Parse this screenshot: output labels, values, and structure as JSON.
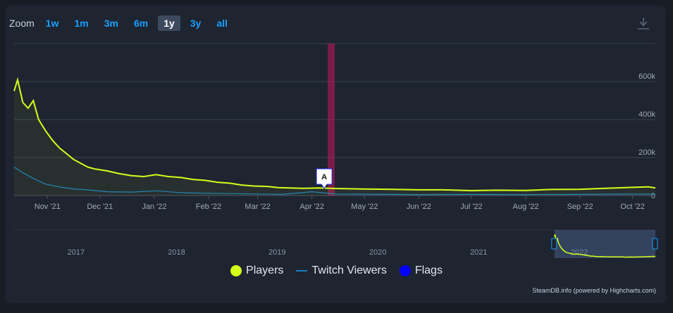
{
  "zoom": {
    "label": "Zoom",
    "buttons": [
      "1w",
      "1m",
      "3m",
      "6m",
      "1y",
      "3y",
      "all"
    ],
    "active": "1y"
  },
  "legend": {
    "players": "Players",
    "twitch": "Twitch Viewers",
    "flags": "Flags"
  },
  "credit": "SteamDB.info (powered by Highcharts.com)",
  "colors": {
    "players": "#d4ff1a",
    "twitch": "#1a7fc0",
    "flags": "#0000ff",
    "highlight": "#c2185b"
  },
  "icons": {
    "download": "download-icon"
  },
  "chart_data": [
    {
      "type": "line",
      "x_labels": [
        "Nov '21",
        "Dec '21",
        "Jan '22",
        "Feb '22",
        "Mar '22",
        "Apr '22",
        "May '22",
        "Jun '22",
        "Jul '22",
        "Aug '22",
        "Sep '22",
        "Oct '22"
      ],
      "y_ticks": [
        "0",
        "200k",
        "400k",
        "600k"
      ],
      "ylim": [
        0,
        800000
      ],
      "series": [
        {
          "name": "Players",
          "x": [
            "2021-10-13",
            "2021-10-15",
            "2021-10-18",
            "2021-10-21",
            "2021-10-24",
            "2021-10-27",
            "2021-10-31",
            "2021-11-04",
            "2021-11-08",
            "2021-11-12",
            "2021-11-16",
            "2021-11-20",
            "2021-11-24",
            "2021-11-28",
            "2021-12-05",
            "2021-12-12",
            "2021-12-19",
            "2021-12-26",
            "2022-01-02",
            "2022-01-09",
            "2022-01-16",
            "2022-01-23",
            "2022-01-30",
            "2022-02-06",
            "2022-02-13",
            "2022-02-20",
            "2022-02-27",
            "2022-03-06",
            "2022-03-13",
            "2022-03-20",
            "2022-03-27",
            "2022-04-05",
            "2022-04-15",
            "2022-05-01",
            "2022-05-15",
            "2022-06-01",
            "2022-06-15",
            "2022-07-01",
            "2022-07-15",
            "2022-08-01",
            "2022-08-15",
            "2022-09-01",
            "2022-09-15",
            "2022-10-01",
            "2022-10-10",
            "2022-10-14"
          ],
          "values": [
            550000,
            610000,
            490000,
            460000,
            500000,
            400000,
            340000,
            290000,
            250000,
            220000,
            190000,
            170000,
            150000,
            140000,
            130000,
            115000,
            105000,
            100000,
            110000,
            100000,
            95000,
            85000,
            80000,
            70000,
            65000,
            55000,
            50000,
            48000,
            42000,
            40000,
            38000,
            40000,
            37000,
            34000,
            33000,
            30000,
            30000,
            26000,
            28000,
            27000,
            32000,
            33000,
            38000,
            43000,
            46000,
            40000
          ]
        },
        {
          "name": "Twitch Viewers",
          "x": [
            "2021-10-13",
            "2021-10-18",
            "2021-10-24",
            "2021-10-31",
            "2021-11-08",
            "2021-11-16",
            "2021-11-24",
            "2021-12-05",
            "2021-12-19",
            "2022-01-02",
            "2022-01-16",
            "2022-02-01",
            "2022-02-15",
            "2022-03-01",
            "2022-03-15",
            "2022-04-01",
            "2022-04-15",
            "2022-05-01",
            "2022-06-01",
            "2022-07-01",
            "2022-08-01",
            "2022-09-01",
            "2022-10-01",
            "2022-10-14"
          ],
          "values": [
            150000,
            120000,
            90000,
            60000,
            45000,
            35000,
            30000,
            20000,
            18000,
            25000,
            15000,
            12000,
            10000,
            8000,
            6000,
            20000,
            8000,
            7000,
            5000,
            6000,
            5000,
            6000,
            8000,
            7000
          ]
        }
      ],
      "flags": [
        {
          "x": "2022-04-08",
          "label": "A"
        }
      ],
      "highlight_band": {
        "from": "2022-04-10",
        "to": "2022-04-14"
      }
    },
    {
      "type": "area",
      "x_labels": [
        "2017",
        "2018",
        "2019",
        "2020",
        "2021",
        "2022"
      ],
      "selected_range": {
        "from": "2021-10-13",
        "to": "2022-10-14"
      }
    }
  ]
}
